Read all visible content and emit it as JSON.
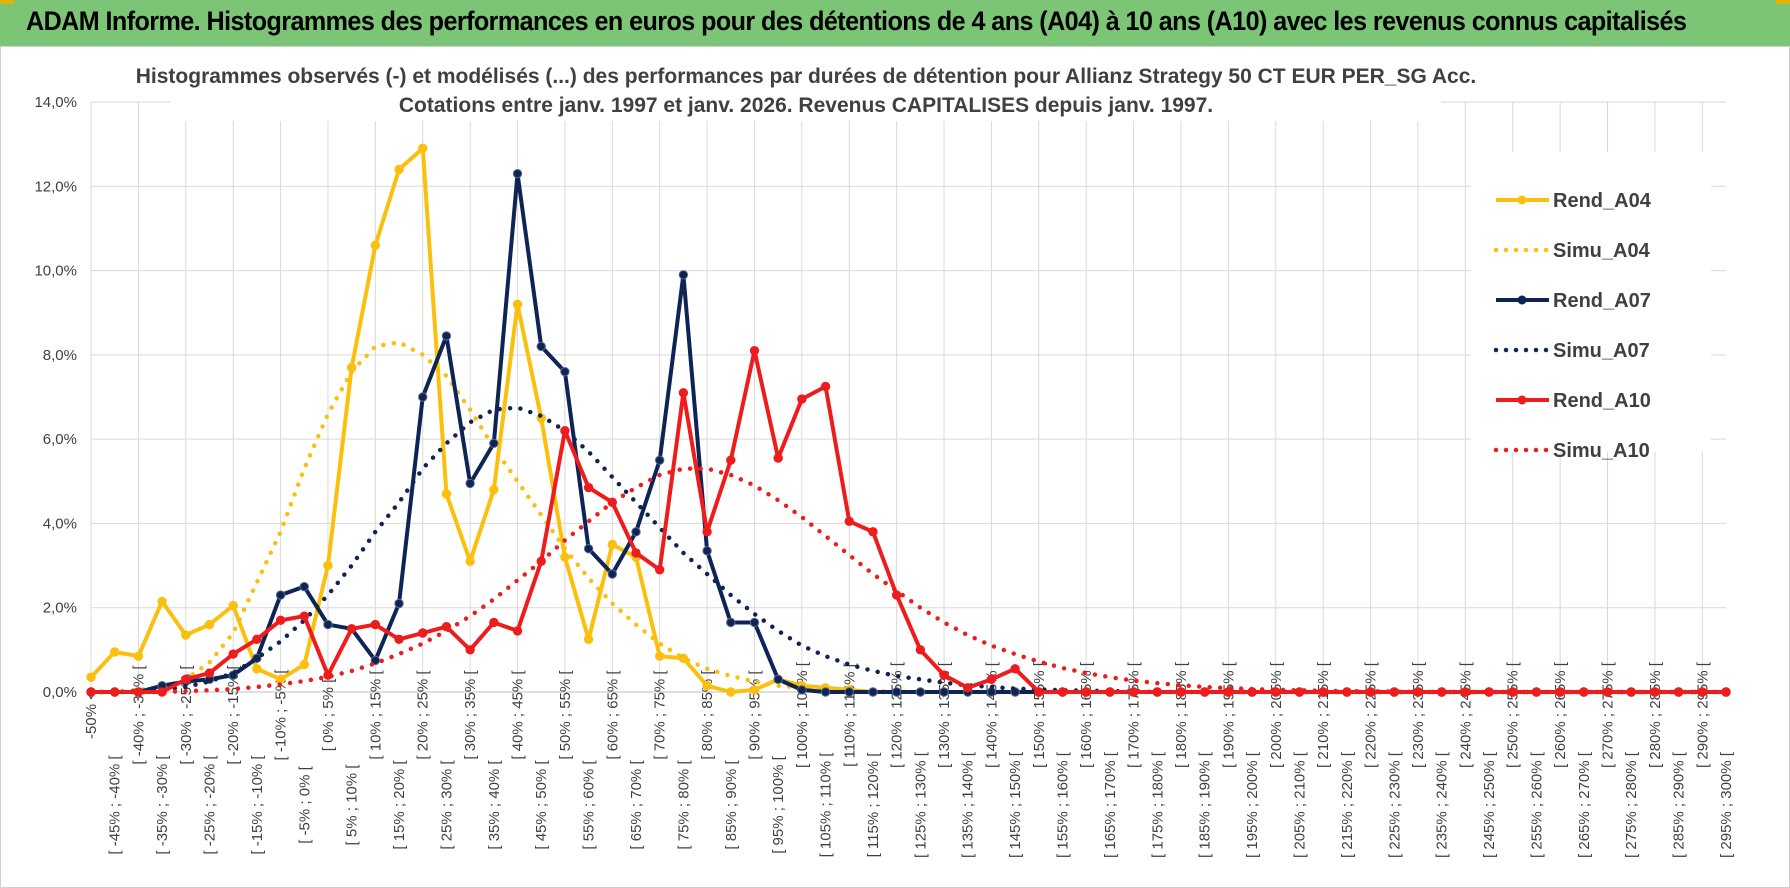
{
  "banner": {
    "title": "ADAM Informe. Histogrammes des performances en euros pour des détentions de 4 ans (A04) à 10 ans (A10) avec les revenus connus capitalisés",
    "color": "#7cc576"
  },
  "chart_data": {
    "type": "line",
    "title_line1": "Histogrammes observés (-) et modélisés (...) des performances par durées de détention pour Allianz Strategy 50 CT EUR PER_SG Acc.",
    "title_line2": "Cotations entre janv. 1997 et janv. 2026. Revenus CAPITALISES depuis janv. 1997.",
    "ylim": [
      0,
      14
    ],
    "yticks": [
      "0,0%",
      "2,0%",
      "4,0%",
      "6,0%",
      "8,0%",
      "10,0%",
      "12,0%",
      "14,0%"
    ],
    "grid": true,
    "legend_position": "right",
    "categories": [
      "-50% <",
      "[ -45% ; -40% [",
      "[ -40% ; -35% [",
      "[ -35% ; -30% [",
      "[ -30% ; -25% [",
      "[ -25% ; -20% [",
      "[ -20% ; -15% [",
      "[ -15% ; -10% [",
      "[ -10% ; -5% [",
      "[ -5% ; 0% [",
      "[ 0% ; 5% [",
      "[ 5% ; 10% [",
      "[ 10% ; 15% [",
      "[ 15% ; 20% [",
      "[ 20% ; 25% [",
      "[ 25% ; 30% [",
      "[ 30% ; 35% [",
      "[ 35% ; 40% [",
      "[ 40% ; 45% [",
      "[ 45% ; 50% [",
      "[ 50% ; 55% [",
      "[ 55% ; 60% [",
      "[ 60% ; 65% [",
      "[ 65% ; 70% [",
      "[ 70% ; 75% [",
      "[ 75% ; 80% [",
      "[ 80% ; 85% [",
      "[ 85% ; 90% [",
      "[ 90% ; 95% [",
      "[ 95% ; 100% [",
      "[ 100% ; 105% [",
      "[ 105% ; 110% [",
      "[ 110% ; 115% [",
      "[ 115% ; 120% [",
      "[ 120% ; 125% [",
      "[ 125% ; 130% [",
      "[ 130% ; 135% [",
      "[ 135% ; 140% [",
      "[ 140% ; 145% [",
      "[ 145% ; 150% [",
      "[ 150% ; 155% [",
      "[ 155% ; 160% [",
      "[ 160% ; 165% [",
      "[ 165% ; 170% [",
      "[ 170% ; 175% [",
      "[ 175% ; 180% [",
      "[ 180% ; 185% [",
      "[ 185% ; 190% [",
      "[ 190% ; 195% [",
      "[ 195% ; 200% [",
      "[ 200% ; 205% [",
      "[ 205% ; 210% [",
      "[ 210% ; 215% [",
      "[ 215% ; 220% [",
      "[ 220% ; 225% [",
      "[ 225% ; 230% [",
      "[ 230% ; 235% [",
      "[ 235% ; 240% [",
      "[ 240% ; 245% [",
      "[ 245% ; 250% [",
      "[ 250% ; 255% [",
      "[ 255% ; 260% [",
      "[ 260% ; 265% [",
      "[ 265% ; 270% [",
      "[ 270% ; 275% [",
      "[ 275% ; 280% [",
      "[ 280% ; 285% [",
      "[ 285% ; 290% [",
      "[ 290% ; 295% [",
      "[ 295% ; 300% ["
    ],
    "series": [
      {
        "name": "Rend_A04",
        "color": "#fbbf0d",
        "style": "solid",
        "markers": true,
        "values": [
          0.35,
          0.95,
          0.85,
          2.15,
          1.35,
          1.6,
          2.05,
          0.55,
          0.3,
          0.65,
          3.0,
          7.7,
          10.6,
          12.4,
          12.9,
          4.7,
          3.1,
          4.8,
          9.2,
          6.5,
          3.2,
          1.25,
          3.5,
          3.2,
          0.85,
          0.8,
          0.15,
          0.0,
          0.05,
          0.3,
          0.15,
          0.1,
          0.05,
          0.0,
          0.0,
          0.0,
          0.0,
          0.0,
          0.0,
          0.0,
          0.0,
          0.0,
          0.0,
          0.0,
          0.0,
          0.0,
          0.0,
          0.0,
          0.0,
          0.0,
          0.0,
          0.0,
          0.0,
          0.0,
          0.0,
          0.0,
          0.0,
          0.0,
          0.0,
          0.0,
          0.0,
          0.0,
          0.0,
          0.0,
          0.0,
          0.0,
          0.0,
          0.0,
          0.0,
          0.0
        ]
      },
      {
        "name": "Simu_A04",
        "color": "#fbbf0d",
        "style": "dotted",
        "markers": false,
        "values": [
          0.0,
          0.0,
          0.05,
          0.1,
          0.3,
          0.7,
          1.4,
          2.6,
          3.8,
          5.3,
          6.6,
          7.6,
          8.2,
          8.3,
          8.0,
          7.5,
          6.7,
          5.8,
          5.0,
          4.2,
          3.4,
          2.7,
          2.1,
          1.6,
          1.15,
          0.8,
          0.55,
          0.38,
          0.25,
          0.15,
          0.1,
          0.06,
          0.03,
          0.02,
          0.01,
          0.0,
          0.0,
          0.0,
          0.0,
          0.0,
          0.0,
          0.0,
          0.0,
          0.0,
          0.0,
          0.0,
          0.0,
          0.0,
          0.0,
          0.0,
          0.0,
          0.0,
          0.0,
          0.0,
          0.0,
          0.0,
          0.0,
          0.0,
          0.0,
          0.0,
          0.0,
          0.0,
          0.0,
          0.0,
          0.0,
          0.0,
          0.0,
          0.0,
          0.0,
          0.0
        ]
      },
      {
        "name": "Rend_A07",
        "color": "#0e2456",
        "style": "solid",
        "markers": true,
        "values": [
          0.0,
          0.0,
          0.0,
          0.15,
          0.25,
          0.3,
          0.4,
          0.8,
          2.3,
          2.5,
          1.6,
          1.5,
          0.75,
          2.1,
          7.0,
          8.45,
          4.95,
          5.9,
          12.3,
          8.2,
          7.6,
          3.4,
          2.8,
          3.8,
          5.5,
          9.9,
          3.35,
          1.65,
          1.65,
          0.3,
          0.05,
          0.0,
          0.0,
          0.0,
          0.0,
          0.0,
          0.0,
          0.0,
          0.0,
          0.0,
          0.0,
          0.0,
          0.0,
          0.0,
          0.0,
          0.0,
          0.0,
          0.0,
          0.0,
          0.0,
          0.0,
          0.0,
          0.0,
          0.0,
          0.0,
          0.0,
          0.0,
          0.0,
          0.0,
          0.0,
          0.0,
          0.0,
          0.0,
          0.0,
          0.0,
          0.0,
          0.0,
          0.0,
          0.0,
          0.0
        ]
      },
      {
        "name": "Simu_A07",
        "color": "#0e2456",
        "style": "dotted",
        "markers": false,
        "values": [
          0.0,
          0.0,
          0.02,
          0.05,
          0.12,
          0.25,
          0.45,
          0.8,
          1.2,
          1.7,
          2.3,
          3.0,
          3.8,
          4.5,
          5.3,
          5.9,
          6.4,
          6.7,
          6.75,
          6.55,
          6.2,
          5.7,
          5.1,
          4.5,
          3.9,
          3.3,
          2.8,
          2.3,
          1.85,
          1.45,
          1.1,
          0.85,
          0.65,
          0.5,
          0.38,
          0.3,
          0.22,
          0.16,
          0.12,
          0.08,
          0.06,
          0.04,
          0.03,
          0.02,
          0.01,
          0.0,
          0.0,
          0.0,
          0.0,
          0.0,
          0.0,
          0.0,
          0.0,
          0.0,
          0.0,
          0.0,
          0.0,
          0.0,
          0.0,
          0.0,
          0.0,
          0.0,
          0.0,
          0.0,
          0.0,
          0.0,
          0.0,
          0.0,
          0.0,
          0.0
        ]
      },
      {
        "name": "Rend_A10",
        "color": "#ee1c1c",
        "style": "solid",
        "markers": true,
        "values": [
          0.0,
          0.0,
          0.0,
          0.0,
          0.3,
          0.45,
          0.9,
          1.25,
          1.7,
          1.8,
          0.4,
          1.5,
          1.6,
          1.25,
          1.4,
          1.55,
          1.0,
          1.65,
          1.45,
          3.1,
          6.2,
          4.85,
          4.5,
          3.3,
          2.9,
          7.1,
          3.8,
          5.5,
          8.1,
          5.55,
          6.95,
          7.25,
          4.05,
          3.8,
          2.3,
          1.0,
          0.4,
          0.1,
          0.3,
          0.55,
          0.0,
          0.0,
          0.0,
          0.0,
          0.0,
          0.0,
          0.0,
          0.0,
          0.0,
          0.0,
          0.0,
          0.0,
          0.0,
          0.0,
          0.0,
          0.0,
          0.0,
          0.0,
          0.0,
          0.0,
          0.0,
          0.0,
          0.0,
          0.0,
          0.0,
          0.0,
          0.0,
          0.0,
          0.0,
          0.0
        ]
      },
      {
        "name": "Simu_A10",
        "color": "#ee1c1c",
        "style": "dotted",
        "markers": false,
        "values": [
          0.0,
          0.0,
          0.0,
          0.0,
          0.02,
          0.04,
          0.07,
          0.12,
          0.18,
          0.26,
          0.36,
          0.5,
          0.68,
          0.9,
          1.15,
          1.45,
          1.8,
          2.2,
          2.65,
          3.1,
          3.6,
          4.05,
          4.5,
          4.85,
          5.15,
          5.3,
          5.3,
          5.15,
          4.9,
          4.55,
          4.15,
          3.7,
          3.25,
          2.8,
          2.4,
          2.0,
          1.65,
          1.35,
          1.1,
          0.9,
          0.72,
          0.57,
          0.45,
          0.35,
          0.27,
          0.21,
          0.16,
          0.12,
          0.09,
          0.07,
          0.05,
          0.04,
          0.03,
          0.02,
          0.015,
          0.01,
          0.0,
          0.0,
          0.0,
          0.0,
          0.0,
          0.0,
          0.0,
          0.0,
          0.0,
          0.0,
          0.0,
          0.0,
          0.0,
          0.0
        ]
      }
    ]
  }
}
